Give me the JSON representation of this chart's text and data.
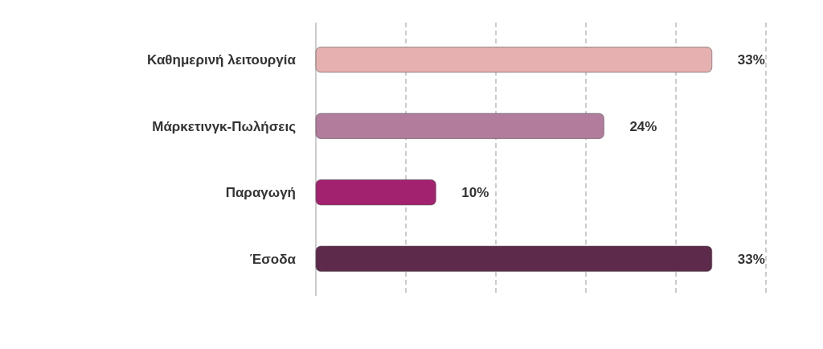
{
  "chart_data": {
    "type": "bar",
    "orientation": "horizontal",
    "categories": [
      "Καθημερινή λειτουργία",
      "Μάρκετινγκ-Πωλήσεις",
      "Παραγωγή",
      "Έσοδα"
    ],
    "values": [
      33,
      24,
      10,
      33
    ],
    "colors": [
      "#e6b0b0",
      "#b27c9c",
      "#a3226f",
      "#5e2a4c"
    ],
    "xlim": [
      0,
      37.5
    ],
    "xticks": [
      {
        "value": 0,
        "label": null
      },
      {
        "value": 7.5,
        "label": null
      },
      {
        "value": 15,
        "label": null
      },
      {
        "value": 22.5,
        "label": null
      },
      {
        "value": 30,
        "label": null
      },
      {
        "value": 37.5,
        "label": null
      }
    ],
    "tick_labels": "y",
    "grid": "x",
    "data_labels": true,
    "value_labels": [
      "33%",
      "24%",
      "10%",
      "33%"
    ]
  }
}
